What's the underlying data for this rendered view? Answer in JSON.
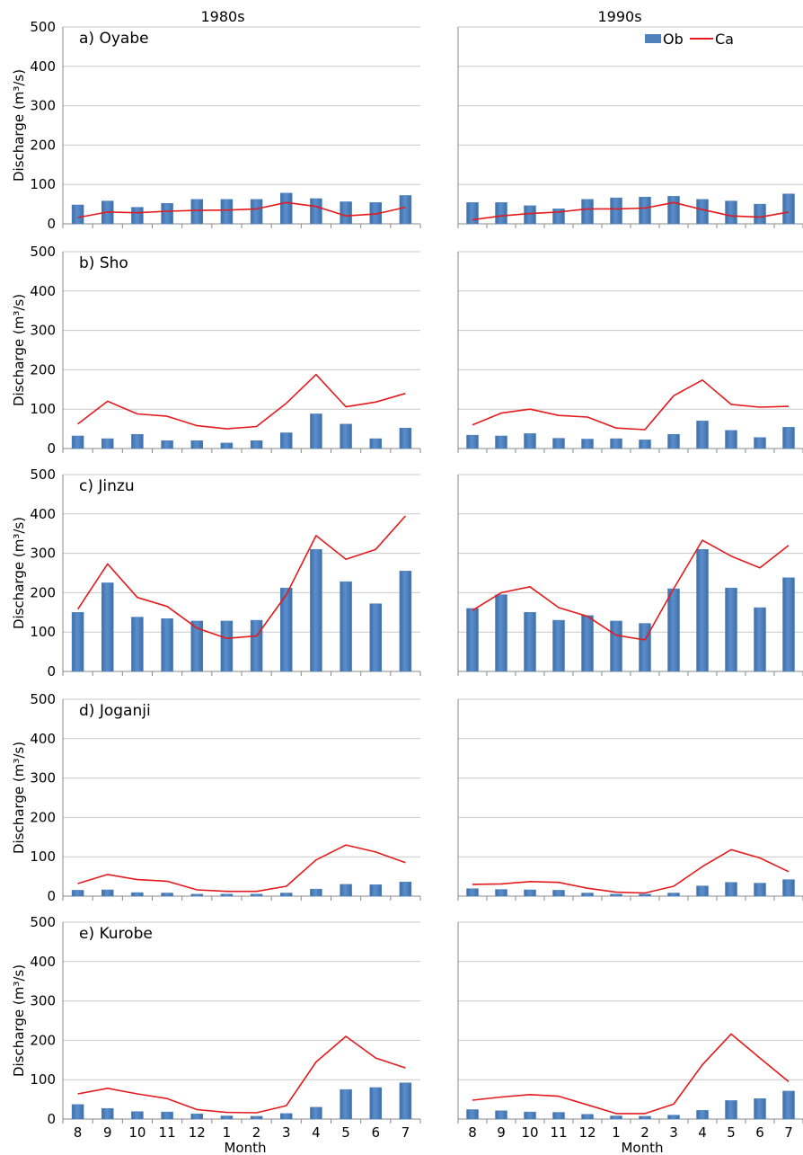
{
  "chart_data": {
    "type": "bar+line",
    "column_titles": [
      "1980s",
      "1990s"
    ],
    "categories": [
      "8",
      "9",
      "10",
      "11",
      "12",
      "1",
      "2",
      "3",
      "4",
      "5",
      "6",
      "7"
    ],
    "xlabel": "Month",
    "ylabel": "Discharge (m³/s)",
    "ylim": [
      0,
      500
    ],
    "yticks": [
      0,
      100,
      200,
      300,
      400,
      500
    ],
    "grid": true,
    "legend": {
      "placement": "top-right",
      "entries": [
        {
          "name": "Ob",
          "kind": "bar",
          "color": "#4f81bd"
        },
        {
          "name": "Ca",
          "kind": "line",
          "color": "#e41a1c"
        }
      ]
    },
    "panels": [
      {
        "label": "a) Oyabe",
        "columns": [
          {
            "series": [
              {
                "name": "Ob",
                "values": [
                  48,
                  58,
                  42,
                  52,
                  62,
                  62,
                  62,
                  78,
                  64,
                  56,
                  54,
                  72
                ]
              },
              {
                "name": "Ca",
                "values": [
                  16,
                  30,
                  28,
                  32,
                  34,
                  35,
                  38,
                  54,
                  44,
                  20,
                  25,
                  42
                ]
              }
            ]
          },
          {
            "series": [
              {
                "name": "Ob",
                "values": [
                  54,
                  54,
                  46,
                  38,
                  62,
                  66,
                  68,
                  70,
                  62,
                  58,
                  50,
                  76
                ]
              },
              {
                "name": "Ca",
                "values": [
                  10,
                  20,
                  26,
                  30,
                  38,
                  38,
                  40,
                  54,
                  36,
                  20,
                  17,
                  30
                ]
              }
            ]
          }
        ]
      },
      {
        "label": "b) Sho",
        "columns": [
          {
            "series": [
              {
                "name": "Ob",
                "values": [
                  32,
                  25,
                  36,
                  20,
                  20,
                  14,
                  20,
                  40,
                  88,
                  62,
                  25,
                  52
                ]
              },
              {
                "name": "Ca",
                "values": [
                  62,
                  120,
                  88,
                  82,
                  58,
                  50,
                  56,
                  115,
                  188,
                  106,
                  118,
                  140
                ]
              }
            ]
          },
          {
            "series": [
              {
                "name": "Ob",
                "values": [
                  34,
                  32,
                  38,
                  26,
                  24,
                  25,
                  22,
                  36,
                  70,
                  46,
                  28,
                  54
                ]
              },
              {
                "name": "Ca",
                "values": [
                  60,
                  90,
                  100,
                  84,
                  80,
                  52,
                  48,
                  134,
                  174,
                  112,
                  105,
                  107
                ]
              }
            ]
          }
        ]
      },
      {
        "label": "c) Jinzu",
        "columns": [
          {
            "series": [
              {
                "name": "Ob",
                "values": [
                  150,
                  225,
                  138,
                  134,
                  128,
                  128,
                  130,
                  212,
                  310,
                  228,
                  172,
                  255
                ]
              },
              {
                "name": "Ca",
                "values": [
                  158,
                  273,
                  188,
                  165,
                  110,
                  84,
                  90,
                  195,
                  345,
                  285,
                  310,
                  395
                ]
              }
            ]
          },
          {
            "series": [
              {
                "name": "Ob",
                "values": [
                  160,
                  195,
                  150,
                  130,
                  142,
                  128,
                  122,
                  210,
                  310,
                  212,
                  162,
                  238
                ]
              },
              {
                "name": "Ca",
                "values": [
                  155,
                  200,
                  215,
                  162,
                  140,
                  92,
                  80,
                  210,
                  333,
                  293,
                  263,
                  320
                ]
              }
            ]
          }
        ]
      },
      {
        "label": "d) Joganji",
        "columns": [
          {
            "series": [
              {
                "name": "Ob",
                "values": [
                  15,
                  16,
                  9,
                  8,
                  5,
                  5,
                  5,
                  8,
                  18,
                  30,
                  29,
                  36
                ]
              },
              {
                "name": "Ca",
                "values": [
                  32,
                  55,
                  42,
                  38,
                  16,
                  12,
                  12,
                  25,
                  92,
                  130,
                  112,
                  85
                ]
              }
            ]
          },
          {
            "series": [
              {
                "name": "Ob",
                "values": [
                  19,
                  17,
                  16,
                  15,
                  8,
                  5,
                  5,
                  8,
                  26,
                  35,
                  33,
                  42
                ]
              },
              {
                "name": "Ca",
                "values": [
                  30,
                  31,
                  37,
                  35,
                  20,
                  10,
                  8,
                  25,
                  75,
                  118,
                  97,
                  62
                ]
              }
            ]
          }
        ]
      },
      {
        "label": "e) Kurobe",
        "columns": [
          {
            "series": [
              {
                "name": "Ob",
                "values": [
                  37,
                  27,
                  19,
                  18,
                  13,
                  8,
                  7,
                  14,
                  30,
                  75,
                  80,
                  92
                ]
              },
              {
                "name": "Ca",
                "values": [
                  64,
                  78,
                  64,
                  52,
                  24,
                  17,
                  16,
                  34,
                  145,
                  210,
                  155,
                  130
                ]
              }
            ]
          },
          {
            "series": [
              {
                "name": "Ob",
                "values": [
                  24,
                  21,
                  18,
                  17,
                  12,
                  8,
                  7,
                  10,
                  22,
                  47,
                  52,
                  71
                ]
              },
              {
                "name": "Ca",
                "values": [
                  48,
                  56,
                  62,
                  58,
                  36,
                  14,
                  14,
                  38,
                  138,
                  216,
                  155,
                  95
                ]
              }
            ]
          }
        ]
      }
    ]
  }
}
